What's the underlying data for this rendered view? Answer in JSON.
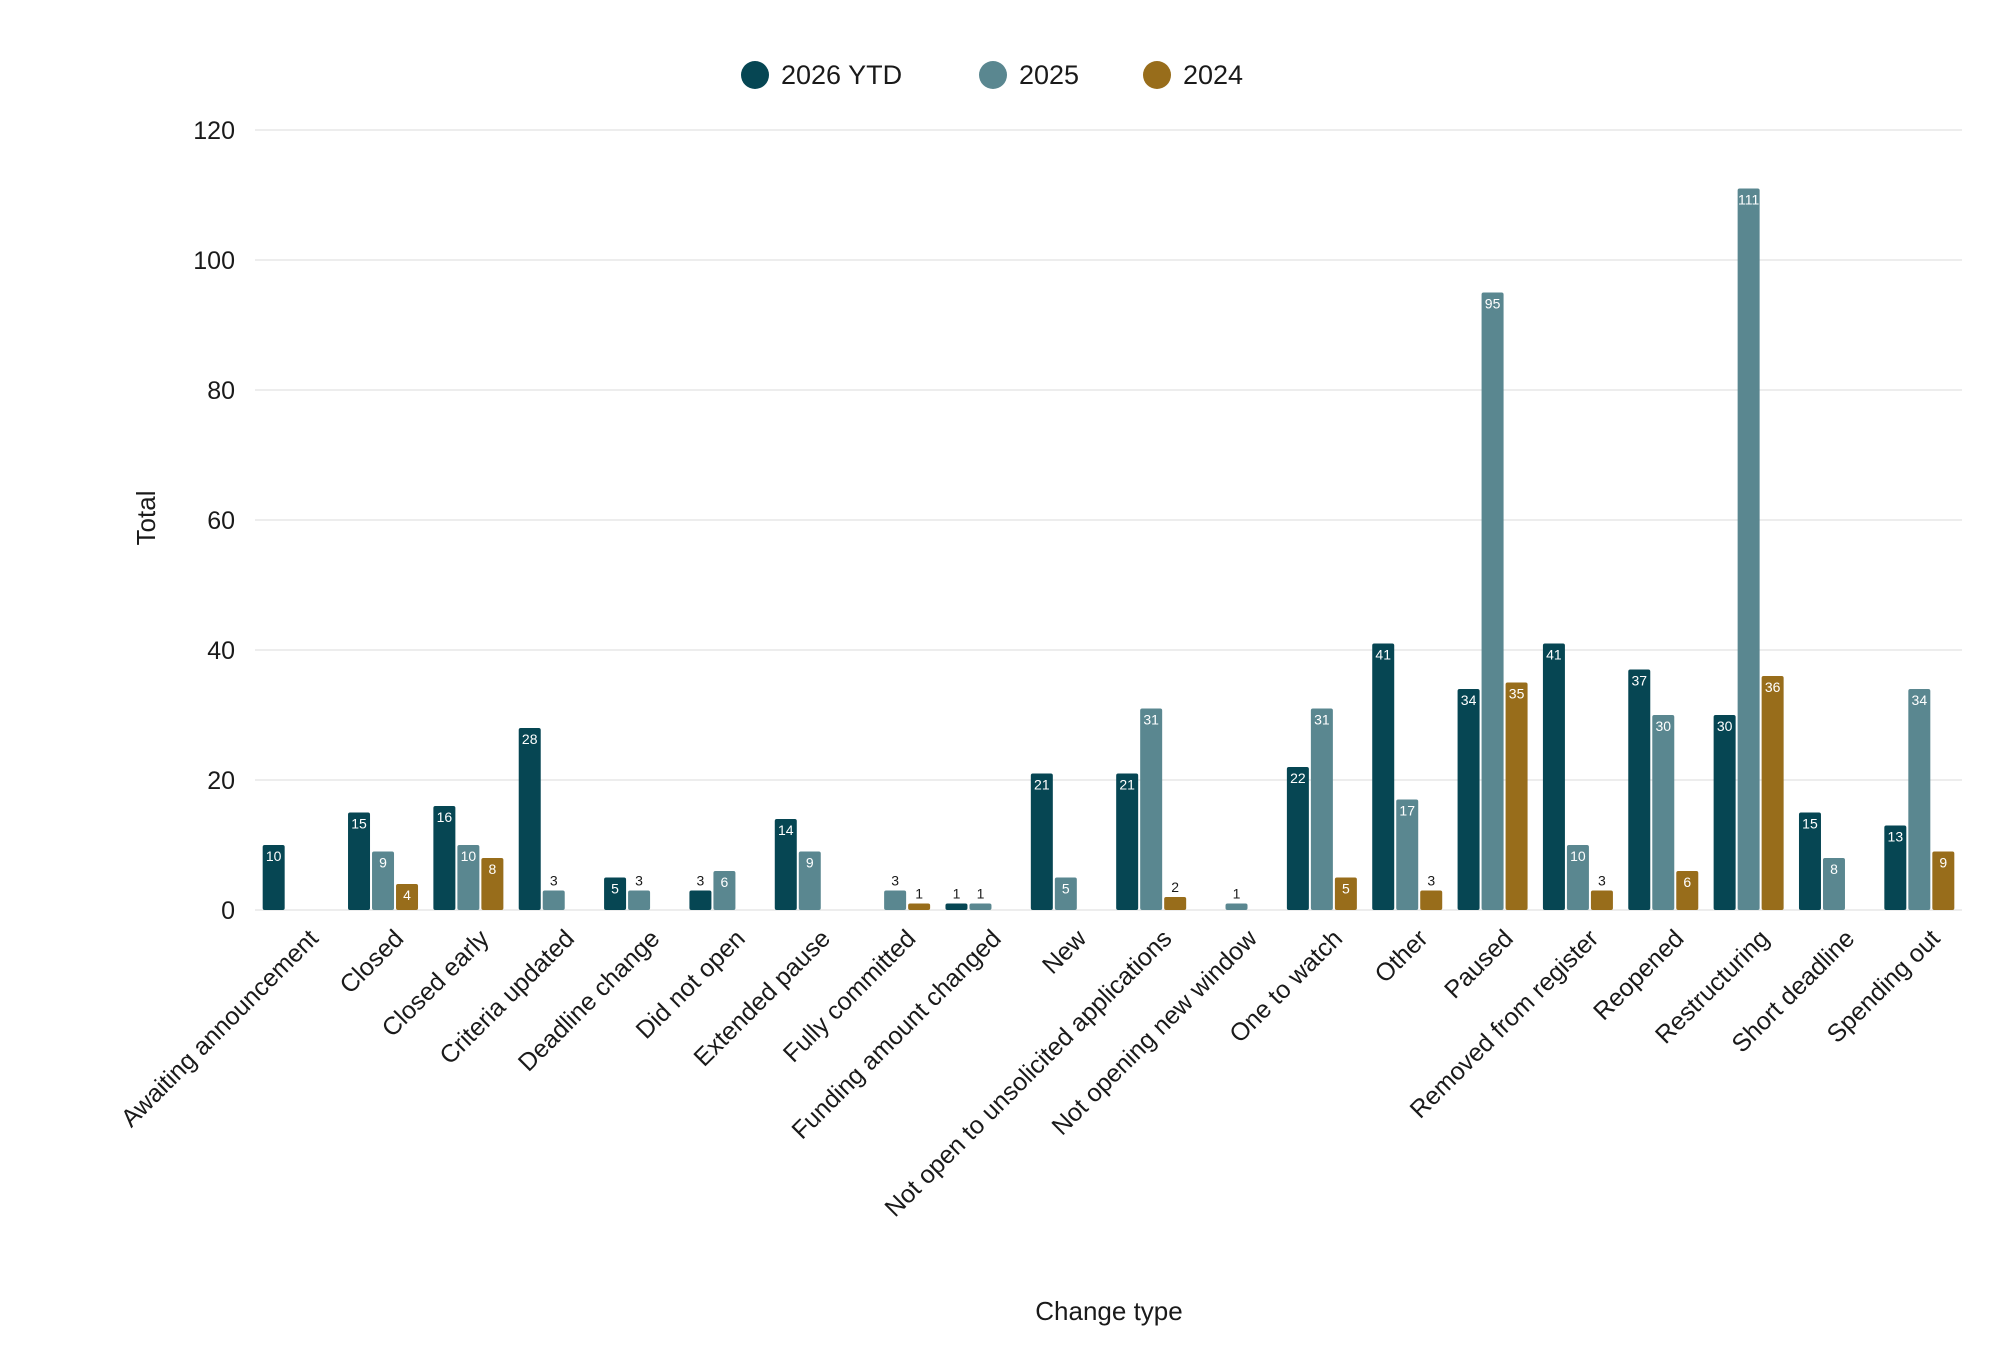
{
  "chart_data": {
    "type": "bar",
    "xlabel": "Change type",
    "ylabel": "Total",
    "ylim": [
      0,
      120
    ],
    "yticks": [
      0,
      20,
      40,
      60,
      80,
      100,
      120
    ],
    "grid": true,
    "legend_position": "top-center",
    "categories": [
      "Awaiting announcement",
      "Closed",
      "Closed early",
      "Criteria updated",
      "Deadline change",
      "Did not open",
      "Extended pause",
      "Fully committed",
      "Funding amount changed",
      "New",
      "Not open to unsolicited applications",
      "Not opening new window",
      "One to watch",
      "Other",
      "Paused",
      "Removed from register",
      "Reopened",
      "Restructuring",
      "Short deadline",
      "Spending out"
    ],
    "series": [
      {
        "name": "2026 YTD",
        "color": "#064653",
        "values": [
          10,
          15,
          16,
          28,
          5,
          3,
          14,
          null,
          1,
          21,
          21,
          null,
          22,
          41,
          34,
          41,
          37,
          30,
          15,
          13
        ]
      },
      {
        "name": "2025",
        "color": "#5a8790",
        "values": [
          null,
          9,
          10,
          3,
          3,
          6,
          9,
          3,
          1,
          5,
          31,
          1,
          31,
          17,
          95,
          10,
          30,
          111,
          8,
          34
        ]
      },
      {
        "name": "2024",
        "color": "#986d1b",
        "values": [
          null,
          4,
          8,
          null,
          null,
          null,
          null,
          1,
          null,
          null,
          2,
          null,
          5,
          3,
          35,
          3,
          6,
          36,
          null,
          9
        ]
      }
    ]
  }
}
